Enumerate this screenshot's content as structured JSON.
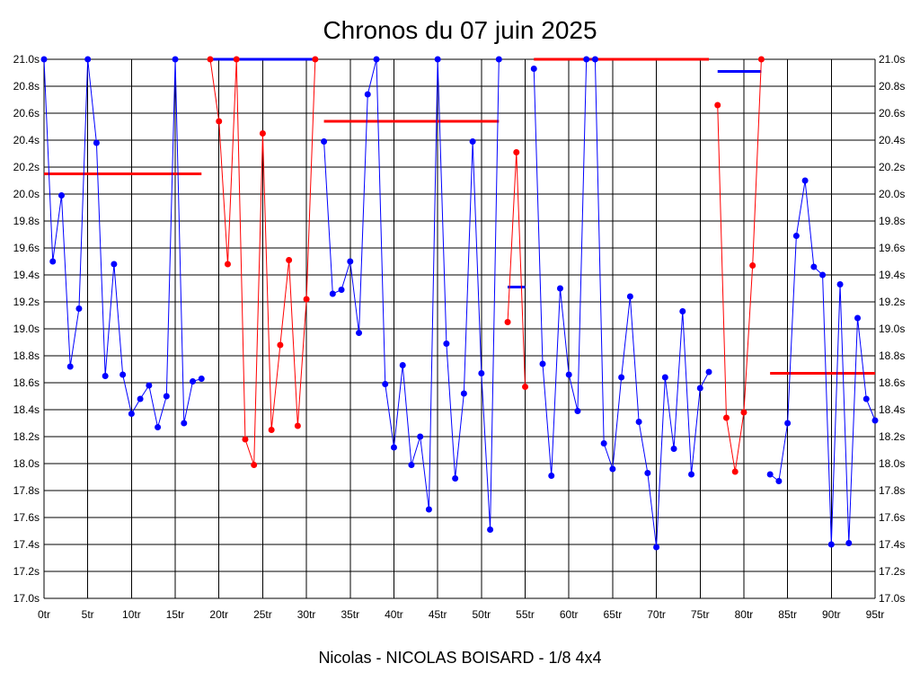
{
  "chart_data": {
    "type": "line",
    "title": "Chronos du 07 juin 2025",
    "subtitle": "Nicolas - NICOLAS BOISARD - 1/8 4x4",
    "x_tick_labels": [
      "0tr",
      "5tr",
      "10tr",
      "15tr",
      "20tr",
      "25tr",
      "30tr",
      "35tr",
      "40tr",
      "45tr",
      "50tr",
      "55tr",
      "60tr",
      "65tr",
      "70tr",
      "75tr",
      "80tr",
      "85tr",
      "90tr",
      "95tr"
    ],
    "y_tick_labels": [
      "21.0s",
      "20.8s",
      "20.6s",
      "20.4s",
      "20.2s",
      "20.0s",
      "19.8s",
      "19.6s",
      "19.4s",
      "19.2s",
      "19.0s",
      "18.8s",
      "18.6s",
      "18.4s",
      "18.2s",
      "18.0s",
      "17.8s",
      "17.6s",
      "17.4s",
      "17.2s",
      "17.0s"
    ],
    "xlim": [
      0,
      95
    ],
    "ylim": [
      17.0,
      21.0
    ],
    "grid": true,
    "colors": {
      "blue": "#0000ff",
      "red": "#ff0000",
      "grid": "#000000"
    },
    "series": [
      {
        "color": "blue",
        "points": [
          [
            0,
            21.0
          ],
          [
            1,
            19.5
          ],
          [
            2,
            19.99
          ],
          [
            3,
            18.72
          ],
          [
            4,
            19.15
          ],
          [
            5,
            21.0
          ],
          [
            6,
            20.38
          ],
          [
            7,
            18.65
          ],
          [
            8,
            19.48
          ],
          [
            9,
            18.66
          ],
          [
            10,
            18.37
          ],
          [
            11,
            18.48
          ],
          [
            12,
            18.58
          ],
          [
            13,
            18.27
          ],
          [
            14,
            18.5
          ],
          [
            15,
            21.0
          ],
          [
            16,
            18.3
          ],
          [
            17,
            18.61
          ],
          [
            18,
            18.63
          ]
        ]
      },
      {
        "color": "red",
        "points": [
          [
            19,
            21.0
          ],
          [
            20,
            20.54
          ],
          [
            21,
            19.48
          ],
          [
            22,
            21.0
          ],
          [
            23,
            18.18
          ],
          [
            24,
            17.99
          ],
          [
            25,
            20.45
          ],
          [
            26,
            18.25
          ],
          [
            27,
            18.88
          ],
          [
            28,
            19.51
          ],
          [
            29,
            18.28
          ],
          [
            30,
            19.22
          ],
          [
            31,
            21.0
          ]
        ]
      },
      {
        "color": "blue",
        "points": [
          [
            32,
            20.39
          ],
          [
            33,
            19.26
          ],
          [
            34,
            19.29
          ],
          [
            35,
            19.5
          ],
          [
            36,
            18.97
          ],
          [
            37,
            20.74
          ],
          [
            38,
            21.0
          ],
          [
            39,
            18.59
          ],
          [
            40,
            18.12
          ],
          [
            41,
            18.73
          ],
          [
            42,
            17.99
          ],
          [
            43,
            18.2
          ],
          [
            44,
            17.66
          ],
          [
            45,
            21.0
          ],
          [
            46,
            18.89
          ],
          [
            47,
            17.89
          ],
          [
            48,
            18.52
          ],
          [
            49,
            20.39
          ],
          [
            50,
            18.67
          ],
          [
            51,
            17.51
          ],
          [
            52,
            21.0
          ]
        ]
      },
      {
        "color": "red",
        "points": [
          [
            53,
            19.05
          ],
          [
            54,
            20.31
          ],
          [
            55,
            18.57
          ]
        ]
      },
      {
        "color": "blue",
        "points": [
          [
            56,
            20.93
          ],
          [
            57,
            18.74
          ],
          [
            58,
            17.91
          ],
          [
            59,
            19.3
          ],
          [
            60,
            18.66
          ],
          [
            61,
            18.39
          ],
          [
            62,
            21.0
          ],
          [
            63,
            21.0
          ],
          [
            64,
            18.15
          ],
          [
            65,
            17.96
          ],
          [
            66,
            18.64
          ],
          [
            67,
            19.24
          ],
          [
            68,
            18.31
          ],
          [
            69,
            17.93
          ],
          [
            70,
            17.38
          ],
          [
            71,
            18.64
          ],
          [
            72,
            18.11
          ],
          [
            73,
            19.13
          ],
          [
            74,
            17.92
          ],
          [
            75,
            18.56
          ],
          [
            76,
            18.68
          ]
        ]
      },
      {
        "color": "red",
        "points": [
          [
            77,
            20.66
          ],
          [
            78,
            18.34
          ],
          [
            79,
            17.94
          ],
          [
            80,
            18.38
          ],
          [
            81,
            19.47
          ],
          [
            82,
            21.0
          ]
        ]
      },
      {
        "color": "blue",
        "points": [
          [
            83,
            17.92
          ],
          [
            84,
            17.87
          ],
          [
            85,
            18.3
          ],
          [
            86,
            19.69
          ],
          [
            87,
            20.1
          ],
          [
            88,
            19.46
          ],
          [
            89,
            19.4
          ],
          [
            90,
            17.4
          ],
          [
            91,
            19.33
          ],
          [
            92,
            17.41
          ],
          [
            93,
            19.08
          ],
          [
            94,
            18.48
          ],
          [
            95,
            18.32
          ]
        ]
      }
    ],
    "average_lines": [
      {
        "color": "red",
        "x": [
          0,
          18
        ],
        "y": 20.15
      },
      {
        "color": "blue",
        "x": [
          19,
          31
        ],
        "y": 21.0
      },
      {
        "color": "red",
        "x": [
          32,
          52
        ],
        "y": 20.54
      },
      {
        "color": "blue",
        "x": [
          53,
          55
        ],
        "y": 19.31
      },
      {
        "color": "red",
        "x": [
          56,
          76
        ],
        "y": 21.0
      },
      {
        "color": "blue",
        "x": [
          77,
          82
        ],
        "y": 20.91
      },
      {
        "color": "red",
        "x": [
          83,
          95
        ],
        "y": 18.67
      }
    ]
  }
}
